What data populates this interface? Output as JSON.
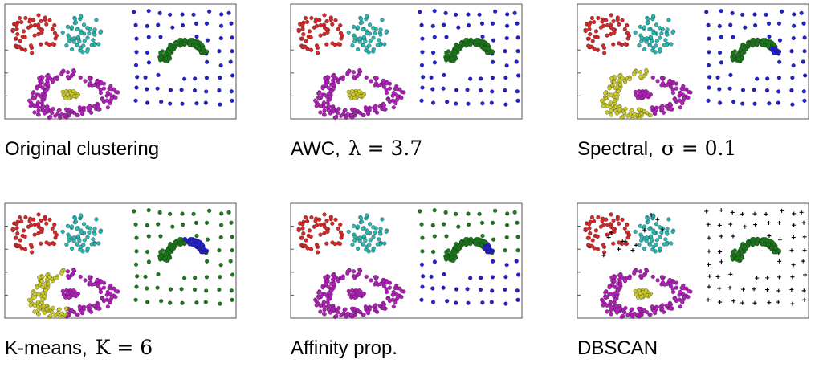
{
  "chart_data": [
    {
      "type": "scatter",
      "caption": "Original clustering",
      "caption_math": "",
      "x_range": [
        0,
        1
      ],
      "y_range": [
        0,
        1
      ],
      "y_ticks": 4,
      "grid": false,
      "clusters": {
        "gauss_left": "#d62728",
        "gauss_right": "#2ab5b0",
        "uniform": "#2020d0",
        "arc": "#1a7a1a",
        "ring": "#b020b8",
        "core": "#c8c828"
      },
      "noise_markers": false
    },
    {
      "type": "scatter",
      "caption": "AWC,",
      "caption_math": "λ = 3.7",
      "x_range": [
        0,
        1
      ],
      "y_range": [
        0,
        1
      ],
      "y_ticks": 4,
      "grid": false,
      "clusters": {
        "gauss_left": "#d62728",
        "gauss_right": "#2ab5b0",
        "uniform": "#2020d0",
        "arc": "#1a7a1a",
        "ring": "#b020b8",
        "core": "#c8c828"
      },
      "noise_markers": false
    },
    {
      "type": "scatter",
      "caption": "Spectral,",
      "caption_math": "σ = 0.1",
      "x_range": [
        0,
        1
      ],
      "y_range": [
        0,
        1
      ],
      "y_ticks": 4,
      "grid": false,
      "clusters": {
        "gauss_left": "#d62728",
        "gauss_right": "#2ab5b0",
        "uniform": "#2020d0",
        "arc": "#1a7a1a",
        "ring": "#c8c828",
        "core": "#b020b8"
      },
      "noise_markers": false
    },
    {
      "type": "scatter",
      "caption": "K-means,",
      "caption_math": "K = 6",
      "x_range": [
        0,
        1
      ],
      "y_range": [
        0,
        1
      ],
      "y_ticks": 4,
      "grid": false,
      "clusters": {
        "gauss_left": "#d62728",
        "gauss_right": "#2ab5b0",
        "uniform": "#1a7a1a",
        "arc": "#1a7a1a",
        "ring": "#b020b8",
        "core": "#b020b8"
      },
      "noise_markers": false
    },
    {
      "type": "scatter",
      "caption": "Affinity prop.",
      "caption_math": "",
      "x_range": [
        0,
        1
      ],
      "y_range": [
        0,
        1
      ],
      "y_ticks": 4,
      "grid": false,
      "clusters": {
        "gauss_left": "#d62728",
        "gauss_right": "#2ab5b0",
        "uniform": "#2020d0",
        "arc": "#1a7a1a",
        "ring": "#b020b8",
        "core": "#b020b8"
      },
      "noise_markers": false
    },
    {
      "type": "scatter",
      "caption": "DBSCAN",
      "caption_math": "",
      "x_range": [
        0,
        1
      ],
      "y_range": [
        0,
        1
      ],
      "y_ticks": 4,
      "grid": false,
      "clusters": {
        "gauss_left": "#d62728",
        "gauss_right": "#2ab5b0",
        "uniform": "#000000",
        "arc": "#1a7a1a",
        "ring": "#b020b8",
        "core": "#c8c828"
      },
      "noise_markers": true
    }
  ]
}
